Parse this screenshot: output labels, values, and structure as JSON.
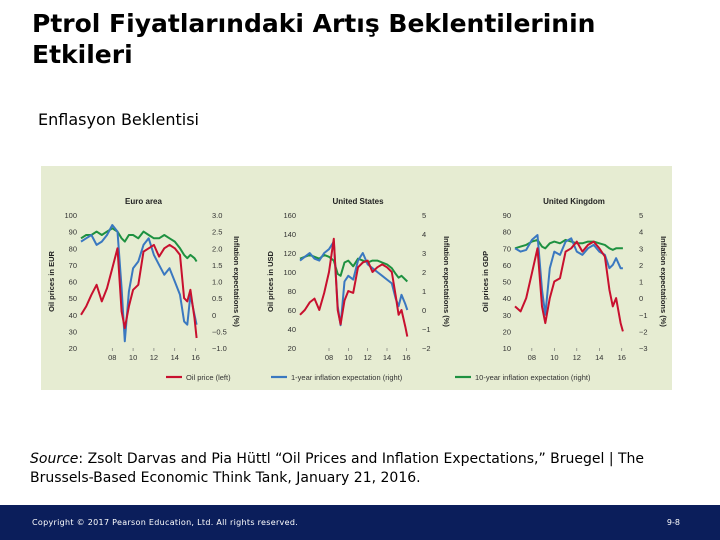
{
  "slide": {
    "title": "Ptrol Fiyatlarındaki Artış Beklentilerinin Etkileri",
    "subtitle": "Enflasyon Beklentisi",
    "source_label": "Source",
    "source_text": ": Zsolt Darvas and Pia Hüttl “Oil Prices and Inflation Expectations,” Bruegel | The Brussels-Based Economic Think Tank, January 21, 2016.",
    "copyright": "Copyright © 2017 Pearson Education, Ltd. All rights reserved.",
    "page_number": "9-8"
  },
  "colors": {
    "background": "#e6ecd2",
    "oil": "#c8102e",
    "inflation_1y": "#3a78c0",
    "inflation_10y": "#1e9140",
    "footer": "#0b1e5b"
  },
  "legend": {
    "position": "bottom",
    "entries": [
      "Oil price (left)",
      "1-year inflation expectation (right)",
      "10-year inflation expectation (right)"
    ]
  },
  "chart_data": [
    {
      "type": "line",
      "title": "Euro area",
      "ylabel": "Oil prices in EUR",
      "y2label": "Inflation expectations (%)",
      "ylim": [
        20,
        100
      ],
      "y2lim": [
        -1.0,
        3.0
      ],
      "yticks": [
        "100",
        "90",
        "80",
        "70",
        "60",
        "50",
        "40",
        "30",
        "20"
      ],
      "y2ticks": [
        "3.0",
        "2.5",
        "2.0",
        "1.5",
        "1.0",
        "0.5",
        "0",
        "−0.5",
        "−1.0"
      ],
      "xlim": [
        2005,
        2017
      ],
      "xticks": [
        {
          "value": 2008,
          "label": "08"
        },
        {
          "value": 2010,
          "label": "10"
        },
        {
          "value": 2012,
          "label": "12"
        },
        {
          "value": 2014,
          "label": "14"
        },
        {
          "value": 2016,
          "label": "16"
        }
      ],
      "series": [
        {
          "name": "Oil price (left)",
          "axis": "left",
          "color": "#c8102e",
          "x": [
            2005,
            2005.5,
            2006,
            2006.5,
            2007,
            2007.5,
            2008,
            2008.5,
            2008.9,
            2009.2,
            2009.6,
            2010,
            2010.5,
            2011,
            2011.5,
            2012,
            2012.5,
            2013,
            2013.5,
            2014,
            2014.5,
            2014.9,
            2015.2,
            2015.5,
            2015.9,
            2016.1
          ],
          "y": [
            40,
            45,
            52,
            58,
            48,
            56,
            68,
            80,
            42,
            32,
            45,
            55,
            58,
            78,
            80,
            82,
            75,
            80,
            82,
            80,
            76,
            50,
            48,
            55,
            38,
            26
          ]
        },
        {
          "name": "1-year inflation expectation (right)",
          "axis": "right",
          "color": "#3a78c0",
          "x": [
            2005,
            2005.5,
            2006,
            2006.5,
            2007,
            2007.5,
            2008,
            2008.5,
            2008.9,
            2009.2,
            2009.6,
            2010,
            2010.5,
            2011,
            2011.5,
            2012,
            2012.5,
            2013,
            2013.5,
            2014,
            2014.5,
            2014.9,
            2015.2,
            2015.5,
            2015.9,
            2016.1
          ],
          "y": [
            2.2,
            2.3,
            2.4,
            2.1,
            2.2,
            2.4,
            2.7,
            2.5,
            0.8,
            -0.8,
            0.7,
            1.4,
            1.6,
            2.1,
            2.3,
            1.8,
            1.5,
            1.2,
            1.4,
            1.0,
            0.6,
            -0.2,
            -0.3,
            0.6,
            0.0,
            -0.3
          ]
        },
        {
          "name": "10-year inflation expectation (right)",
          "axis": "right",
          "color": "#1e9140",
          "x": [
            2005,
            2005.5,
            2006,
            2006.5,
            2007,
            2007.5,
            2008,
            2008.5,
            2008.9,
            2009.2,
            2009.6,
            2010,
            2010.5,
            2011,
            2011.5,
            2012,
            2012.5,
            2013,
            2013.5,
            2014,
            2014.5,
            2014.9,
            2015.2,
            2015.5,
            2015.9,
            2016.1
          ],
          "y": [
            2.3,
            2.4,
            2.4,
            2.5,
            2.4,
            2.5,
            2.6,
            2.5,
            2.3,
            2.2,
            2.4,
            2.4,
            2.3,
            2.5,
            2.4,
            2.3,
            2.3,
            2.4,
            2.3,
            2.2,
            2.0,
            1.8,
            1.7,
            1.8,
            1.7,
            1.6
          ]
        }
      ]
    },
    {
      "type": "line",
      "title": "United States",
      "ylabel": "Oil prices in USD",
      "y2label": "Inflation expectations (%)",
      "ylim": [
        20,
        160
      ],
      "y2lim": [
        -2,
        5
      ],
      "yticks": [
        "160",
        "140",
        "120",
        "100",
        "80",
        "60",
        "40",
        "20"
      ],
      "y2ticks": [
        "5",
        "4",
        "3",
        "2",
        "1",
        "0",
        "−1",
        "−2"
      ],
      "xlim": [
        2005,
        2017
      ],
      "xticks": [
        {
          "value": 2008,
          "label": "08"
        },
        {
          "value": 2010,
          "label": "10"
        },
        {
          "value": 2012,
          "label": "12"
        },
        {
          "value": 2014,
          "label": "14"
        },
        {
          "value": 2016,
          "label": "16"
        }
      ],
      "series": [
        {
          "name": "Oil price (left)",
          "axis": "left",
          "color": "#c8102e",
          "x": [
            2005,
            2005.5,
            2006,
            2006.5,
            2007,
            2007.5,
            2008,
            2008.5,
            2008.9,
            2009.2,
            2009.6,
            2010,
            2010.5,
            2011,
            2011.5,
            2012,
            2012.5,
            2013,
            2013.5,
            2014,
            2014.5,
            2014.9,
            2015.2,
            2015.5,
            2015.9,
            2016.1
          ],
          "y": [
            55,
            60,
            68,
            72,
            60,
            78,
            100,
            135,
            60,
            45,
            70,
            80,
            78,
            105,
            110,
            112,
            100,
            105,
            108,
            105,
            100,
            75,
            55,
            60,
            42,
            32
          ]
        },
        {
          "name": "1-year inflation expectation (right)",
          "axis": "right",
          "color": "#3a78c0",
          "x": [
            2005,
            2005.5,
            2006,
            2006.5,
            2007,
            2007.5,
            2008,
            2008.5,
            2008.9,
            2009.2,
            2009.6,
            2010,
            2010.5,
            2011,
            2011.5,
            2012,
            2012.5,
            2013,
            2013.5,
            2014,
            2014.5,
            2014.9,
            2015.2,
            2015.5,
            2015.9,
            2016.1
          ],
          "y": [
            2.6,
            2.8,
            3.0,
            2.7,
            2.6,
            3.0,
            3.2,
            3.6,
            0.2,
            -0.8,
            1.5,
            1.8,
            1.6,
            2.6,
            3.0,
            2.4,
            2.2,
            2.0,
            1.8,
            1.6,
            1.4,
            0.6,
            0.2,
            0.8,
            0.3,
            0.0
          ]
        },
        {
          "name": "10-year inflation expectation (right)",
          "axis": "right",
          "color": "#1e9140",
          "x": [
            2005,
            2005.5,
            2006,
            2006.5,
            2007,
            2007.5,
            2008,
            2008.5,
            2008.9,
            2009.2,
            2009.6,
            2010,
            2010.5,
            2011,
            2011.5,
            2012,
            2012.5,
            2013,
            2013.5,
            2014,
            2014.5,
            2014.9,
            2015.2,
            2015.5,
            2015.9,
            2016.1
          ],
          "y": [
            2.7,
            2.8,
            2.9,
            2.8,
            2.7,
            2.9,
            2.8,
            2.6,
            1.9,
            1.8,
            2.5,
            2.6,
            2.3,
            2.7,
            2.6,
            2.5,
            2.6,
            2.6,
            2.5,
            2.4,
            2.2,
            1.9,
            1.7,
            1.8,
            1.6,
            1.5
          ]
        }
      ]
    },
    {
      "type": "line",
      "title": "United Kingdom",
      "ylabel": "Oil prices in GDP",
      "y2label": "Inflation expectations (%)",
      "ylim": [
        10,
        90
      ],
      "y2lim": [
        -3,
        5
      ],
      "yticks": [
        "90",
        "80",
        "70",
        "60",
        "50",
        "40",
        "30",
        "20",
        "10"
      ],
      "y2ticks": [
        "5",
        "4",
        "3",
        "2",
        "1",
        "0",
        "−1",
        "−2",
        "−3"
      ],
      "xlim": [
        2006.5,
        2017
      ],
      "xticks": [
        {
          "value": 2008,
          "label": "08"
        },
        {
          "value": 2010,
          "label": "10"
        },
        {
          "value": 2012,
          "label": "12"
        },
        {
          "value": 2014,
          "label": "14"
        },
        {
          "value": 2016,
          "label": "16"
        }
      ],
      "series": [
        {
          "name": "Oil price (left)",
          "axis": "left",
          "color": "#c8102e",
          "x": [
            2006.5,
            2007,
            2007.5,
            2008,
            2008.5,
            2008.9,
            2009.2,
            2009.6,
            2010,
            2010.5,
            2011,
            2011.5,
            2012,
            2012.5,
            2013,
            2013.5,
            2014,
            2014.5,
            2014.9,
            2015.2,
            2015.5,
            2015.9,
            2016.1
          ],
          "y": [
            35,
            32,
            40,
            55,
            70,
            35,
            25,
            40,
            50,
            52,
            68,
            70,
            74,
            68,
            72,
            74,
            70,
            65,
            45,
            35,
            40,
            25,
            20
          ]
        },
        {
          "name": "1-year inflation expectation (right)",
          "axis": "right",
          "color": "#3a78c0",
          "x": [
            2006.5,
            2007,
            2007.5,
            2008,
            2008.5,
            2008.9,
            2009.2,
            2009.6,
            2010,
            2010.5,
            2011,
            2011.5,
            2012,
            2012.5,
            2013,
            2013.5,
            2014,
            2014.5,
            2014.9,
            2015.2,
            2015.5,
            2015.9,
            2016.1
          ],
          "y": [
            3.0,
            2.8,
            2.9,
            3.5,
            3.8,
            0.5,
            -1.0,
            1.8,
            2.8,
            2.6,
            3.4,
            3.6,
            2.8,
            2.6,
            3.0,
            3.2,
            2.8,
            2.6,
            1.8,
            2.0,
            2.4,
            1.8,
            1.8
          ]
        },
        {
          "name": "10-year inflation expectation (right)",
          "axis": "right",
          "color": "#1e9140",
          "x": [
            2006.5,
            2007,
            2007.5,
            2008,
            2008.5,
            2008.9,
            2009.2,
            2009.6,
            2010,
            2010.5,
            2011,
            2011.5,
            2012,
            2012.5,
            2013,
            2013.5,
            2014,
            2014.5,
            2014.9,
            2015.2,
            2015.5,
            2015.9,
            2016.1
          ],
          "y": [
            3.0,
            3.1,
            3.2,
            3.4,
            3.5,
            3.1,
            3.0,
            3.3,
            3.4,
            3.3,
            3.5,
            3.4,
            3.3,
            3.3,
            3.4,
            3.4,
            3.3,
            3.2,
            3.0,
            2.9,
            3.0,
            3.0,
            3.0
          ]
        }
      ]
    }
  ]
}
